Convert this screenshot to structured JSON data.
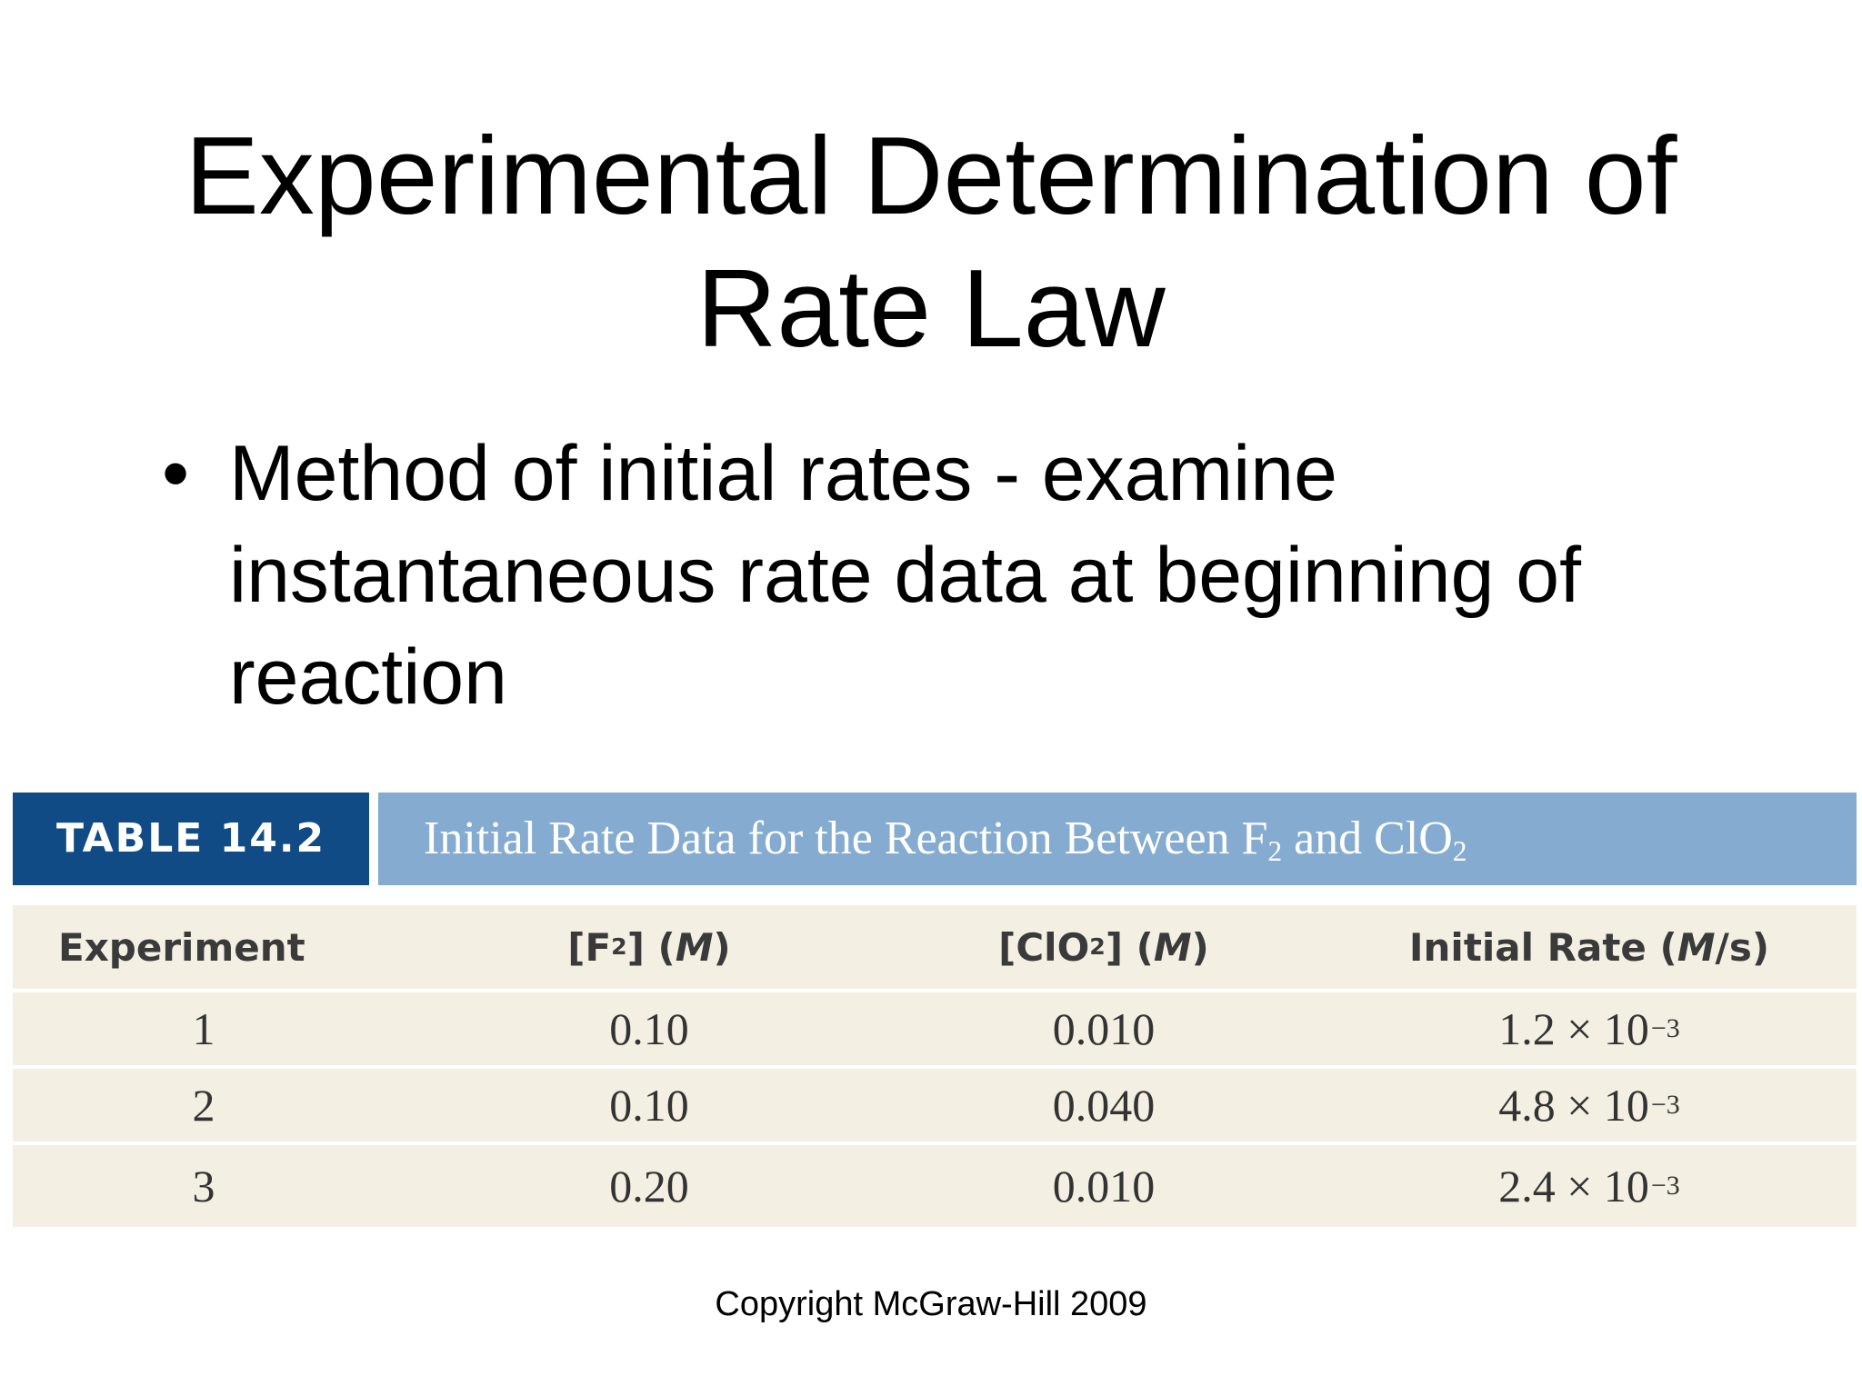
{
  "slide": {
    "title_line1": "Experimental Determination of",
    "title_line2": "Rate Law",
    "bullet_marker": "•",
    "bullet_text": "Method of initial rates - examine instantaneous rate data at beginning of reaction",
    "copyright": "Copyright McGraw-Hill 2009"
  },
  "table": {
    "number": "TABLE 14.2",
    "caption": {
      "prefix": "Initial Rate Data for the Reaction Between F",
      "sub1": "2",
      "middle": " and ClO",
      "sub2": "2"
    },
    "header_colors": {
      "number_bg": "#114b86",
      "caption_bg": "#85acd0",
      "body_bg": "#f3f0e3"
    },
    "columns": {
      "experiment": "Experiment",
      "f2": {
        "open": "[F",
        "sub": "2",
        "close": "] (",
        "unit": "M",
        "end": ")"
      },
      "clo2": {
        "open": "[ClO",
        "sub": "2",
        "close": "] (",
        "unit": "M",
        "end": ")"
      },
      "rate": {
        "open": "Initial Rate (",
        "unit": "M",
        "end": "/s)"
      }
    },
    "rows": [
      {
        "experiment": "1",
        "f2": "0.10",
        "clo2": "0.010",
        "rate_mantissa": "1.2 × 10",
        "rate_exp": "−3"
      },
      {
        "experiment": "2",
        "f2": "0.10",
        "clo2": "0.040",
        "rate_mantissa": "4.8 × 10",
        "rate_exp": "−3"
      },
      {
        "experiment": "3",
        "f2": "0.20",
        "clo2": "0.010",
        "rate_mantissa": "2.4 × 10",
        "rate_exp": "−3"
      }
    ]
  }
}
